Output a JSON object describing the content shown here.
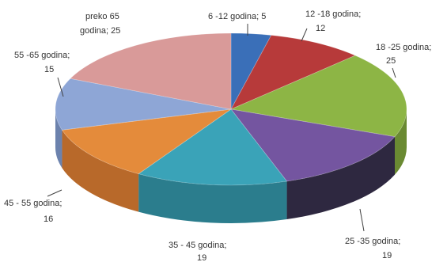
{
  "chart_data": {
    "type": "pie",
    "title": "",
    "unit": "",
    "slices": [
      {
        "label": "6 -12 godina",
        "value": 5,
        "color": "#3a6fb8",
        "side": "#2a5390"
      },
      {
        "label": "12 -18 godina",
        "value": 12,
        "color": "#b73a3a",
        "side": "#892a2a"
      },
      {
        "label": "18 -25 godina",
        "value": 25,
        "color": "#8db545",
        "side": "#6a8a32"
      },
      {
        "label": "25 -35 godina",
        "value": 19,
        "color": "#7455a0",
        "side": "#2e2840"
      },
      {
        "label": "35 - 45 godina",
        "value": 19,
        "color": "#3aa3b8",
        "side": "#2b7d8d"
      },
      {
        "label": "45 - 55 godina",
        "value": 16,
        "color": "#e48b3b",
        "side": "#b8692a"
      },
      {
        "label": "55 -65 godina",
        "value": 15,
        "color": "#8ea6d6",
        "side": "#6c82ad"
      },
      {
        "label": "preko 65 godina",
        "value": 25,
        "color": "#d99a99",
        "side": "#b07978"
      }
    ],
    "data_labels": [
      {
        "line1": "6 -12 godina; 5",
        "line2": ""
      },
      {
        "line1": "12 -18 godina;",
        "line2": "12"
      },
      {
        "line1": "18 -25 godina;",
        "line2": "25"
      },
      {
        "line1": "25 -35 godina;",
        "line2": "19"
      },
      {
        "line1": "35 - 45 godina;",
        "line2": "19"
      },
      {
        "line1": "45 - 55 godina;",
        "line2": "16"
      },
      {
        "line1": "55 -65 godina;",
        "line2": "15"
      },
      {
        "line1": "preko 65",
        "line2": "godina; 25"
      }
    ]
  }
}
